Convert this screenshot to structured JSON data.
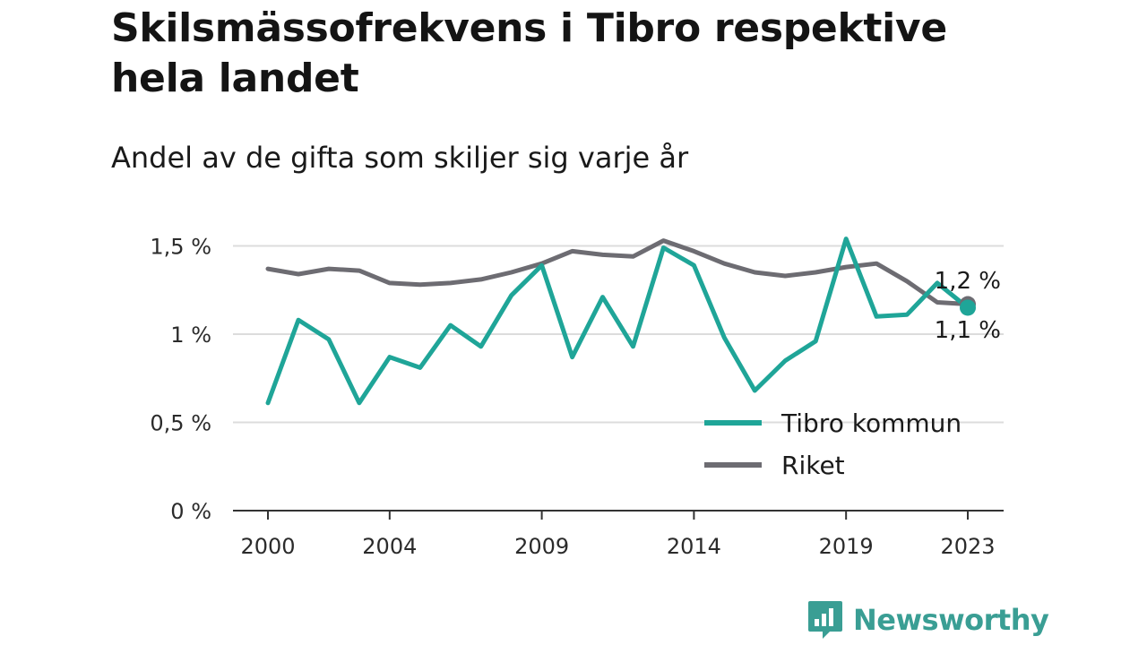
{
  "title": "Skilsmässofrekvens i Tibro respektive hela landet",
  "subtitle": "Andel av de gifta som skiljer sig varje år",
  "brand": {
    "name": "Newsworthy",
    "icon": "newsworthy-logo-icon",
    "color": "#3a9e94"
  },
  "chart_data": {
    "type": "line",
    "x": [
      2000,
      2001,
      2002,
      2003,
      2004,
      2005,
      2006,
      2007,
      2008,
      2009,
      2010,
      2011,
      2012,
      2013,
      2014,
      2015,
      2016,
      2017,
      2018,
      2019,
      2020,
      2021,
      2022,
      2023
    ],
    "xticks": [
      2000,
      2004,
      2009,
      2014,
      2019,
      2023
    ],
    "xtick_labels": [
      "2000",
      "2004",
      "2009",
      "2014",
      "2019",
      "2023"
    ],
    "ylim": [
      0,
      1.55
    ],
    "yticks": [
      0,
      0.5,
      1,
      1.5
    ],
    "ytick_labels": [
      "0 %",
      "0,5 %",
      "1 %",
      "1,5 %"
    ],
    "grid": true,
    "legend_position": "bottom-right",
    "series": [
      {
        "name": "Tibro kommun",
        "color": "#1fa598",
        "values": [
          0.61,
          1.08,
          0.97,
          0.61,
          0.87,
          0.81,
          1.05,
          0.93,
          1.22,
          1.39,
          0.87,
          1.21,
          0.93,
          1.49,
          1.39,
          0.98,
          0.68,
          0.85,
          0.96,
          1.54,
          1.1,
          1.11,
          1.29,
          1.15
        ],
        "end_label": "1,1 %"
      },
      {
        "name": "Riket",
        "color": "#6d6c72",
        "values": [
          1.37,
          1.34,
          1.37,
          1.36,
          1.29,
          1.28,
          1.29,
          1.31,
          1.35,
          1.4,
          1.47,
          1.45,
          1.44,
          1.53,
          1.47,
          1.4,
          1.35,
          1.33,
          1.35,
          1.38,
          1.4,
          1.3,
          1.18,
          1.17
        ],
        "end_label": "1,2 %"
      }
    ]
  }
}
